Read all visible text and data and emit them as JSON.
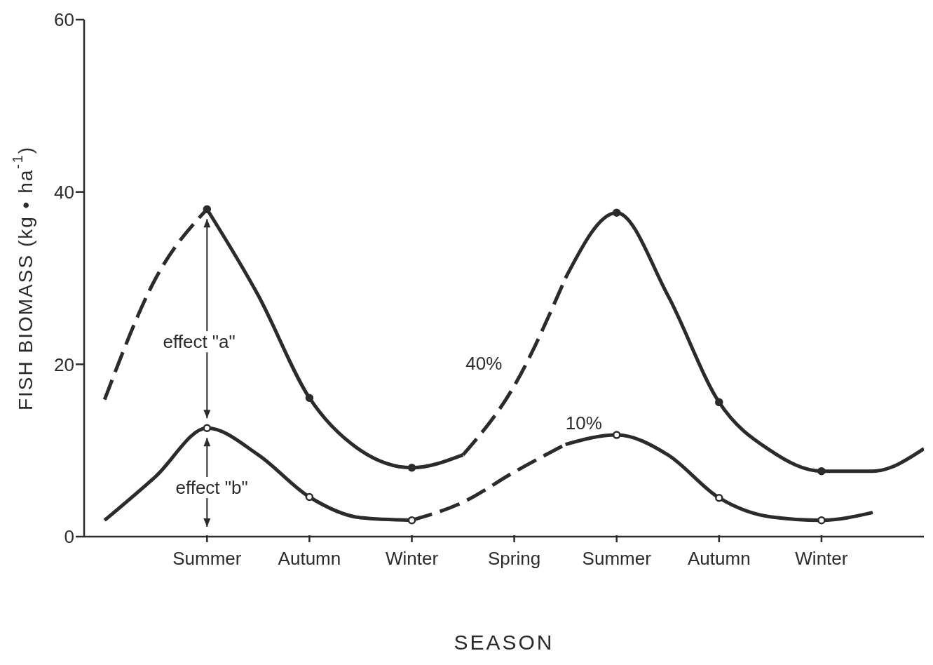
{
  "chart_data": {
    "type": "line",
    "xlabel": "SEASON",
    "ylabel": "FISH BIOMASS (kg • ha$^{-1}$)",
    "categories": [
      null,
      null,
      "Summer",
      null,
      "Autumn",
      null,
      "Winter",
      null,
      "Spring",
      null,
      "Summer",
      null,
      "Autumn",
      null,
      "Winter",
      null,
      null
    ],
    "ylim": [
      0,
      60
    ],
    "yticks": [
      0,
      20,
      40,
      60
    ],
    "grid": false,
    "legend": false,
    "series": [
      {
        "color": "#2b2b2b",
        "line_style": "dashed",
        "values": [
          15.9,
          30,
          38,
          null,
          null,
          null,
          null,
          null,
          null,
          null,
          null,
          null,
          null,
          null,
          null,
          null,
          null
        ]
      },
      {
        "color": "#2b2b2b",
        "line_style": "solid",
        "values": [
          null,
          null,
          38,
          28,
          16.1,
          10,
          8,
          9.5,
          null,
          null,
          null,
          null,
          null,
          null,
          null,
          null,
          null
        ]
      },
      {
        "color": "#2b2b2b",
        "line_style": "dashed",
        "values": [
          null,
          null,
          null,
          null,
          null,
          null,
          null,
          9.5,
          17.5,
          30,
          null,
          null,
          null,
          null,
          null,
          null,
          null
        ]
      },
      {
        "color": "#2b2b2b",
        "line_style": "solid",
        "values": [
          null,
          null,
          null,
          null,
          null,
          null,
          null,
          null,
          null,
          30,
          37.6,
          28,
          15.6,
          10,
          7.6,
          7.6,
          10.2
        ]
      },
      {
        "color": "#2b2b2b",
        "line_style": "solid",
        "values": [
          1.9,
          7,
          12.6,
          9.5,
          4.6,
          2.2,
          1.9,
          null,
          null,
          null,
          null,
          null,
          null,
          null,
          null,
          null,
          null
        ]
      },
      {
        "color": "#2b2b2b",
        "line_style": "dashed",
        "values": [
          null,
          null,
          null,
          null,
          null,
          null,
          1.9,
          4,
          7.5,
          10.7,
          null,
          null,
          null,
          null,
          null,
          null,
          null
        ]
      },
      {
        "color": "#2b2b2b",
        "line_style": "solid",
        "values": [
          null,
          null,
          null,
          null,
          null,
          null,
          null,
          null,
          null,
          10.7,
          11.8,
          9.5,
          4.5,
          2.3,
          1.9,
          2.8,
          null
        ]
      },
      {
        "type": "scatter",
        "color": "#2b2b2b",
        "values": [
          null,
          null,
          38,
          null,
          16.1,
          null,
          8,
          null,
          null,
          null,
          37.6,
          null,
          15.6,
          null,
          7.6,
          null,
          null
        ]
      },
      {
        "type": "scatter",
        "color": "#ffffff",
        "values": [
          null,
          null,
          12.6,
          null,
          4.6,
          null,
          1.9,
          null,
          null,
          null,
          11.8,
          null,
          4.5,
          null,
          1.9,
          null,
          null
        ]
      }
    ],
    "annotations": [
      "effect \"a\"",
      "effect \"b\"",
      "40%",
      "10%"
    ]
  }
}
